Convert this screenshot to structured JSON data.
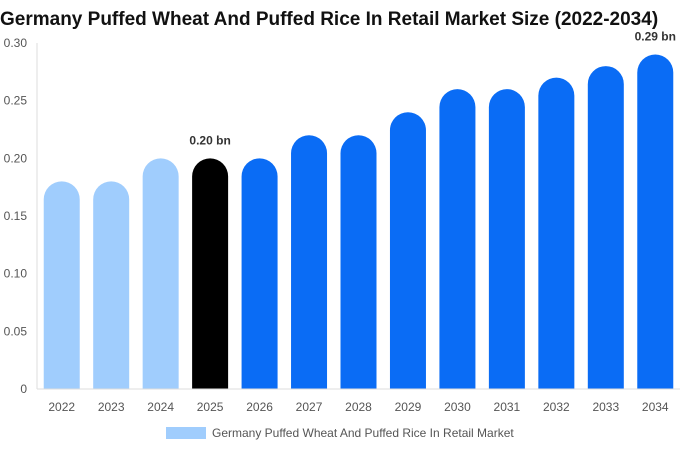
{
  "chart_data": {
    "type": "bar",
    "title": "Germany Puffed Wheat And Puffed Rice In Retail Market Size (2022-2034)",
    "categories": [
      "2022",
      "2023",
      "2024",
      "2025",
      "2026",
      "2027",
      "2028",
      "2029",
      "2030",
      "2031",
      "2032",
      "2033",
      "2034"
    ],
    "series": [
      {
        "name": "Germany Puffed Wheat And Puffed Rice In Retail Market",
        "values": [
          0.18,
          0.18,
          0.2,
          0.2,
          0.2,
          0.22,
          0.22,
          0.24,
          0.26,
          0.26,
          0.27,
          0.28,
          0.29
        ]
      }
    ],
    "bar_colors": [
      "#a0cdfd",
      "#a0cdfd",
      "#a0cdfd",
      "#000000",
      "#0a6cf5",
      "#0a6cf5",
      "#0a6cf5",
      "#0a6cf5",
      "#0a6cf5",
      "#0a6cf5",
      "#0a6cf5",
      "#0a6cf5",
      "#0a6cf5"
    ],
    "ylim": [
      0,
      0.3
    ],
    "yticks": [
      0,
      0.05,
      0.1,
      0.15,
      0.2,
      0.25,
      0.3
    ],
    "ytick_labels": [
      "0",
      "0.05",
      "0.10",
      "0.15",
      "0.20",
      "0.25",
      "0.30"
    ],
    "data_labels": [
      {
        "category": "2025",
        "text": "0.20 bn"
      },
      {
        "category": "2034",
        "text": "0.29 bn"
      }
    ],
    "legend": {
      "label": "Germany Puffed Wheat And Puffed Rice In Retail Market",
      "color": "#a0cdfd",
      "position": "bottom"
    },
    "xlabel": "",
    "ylabel": "",
    "grid": false
  }
}
